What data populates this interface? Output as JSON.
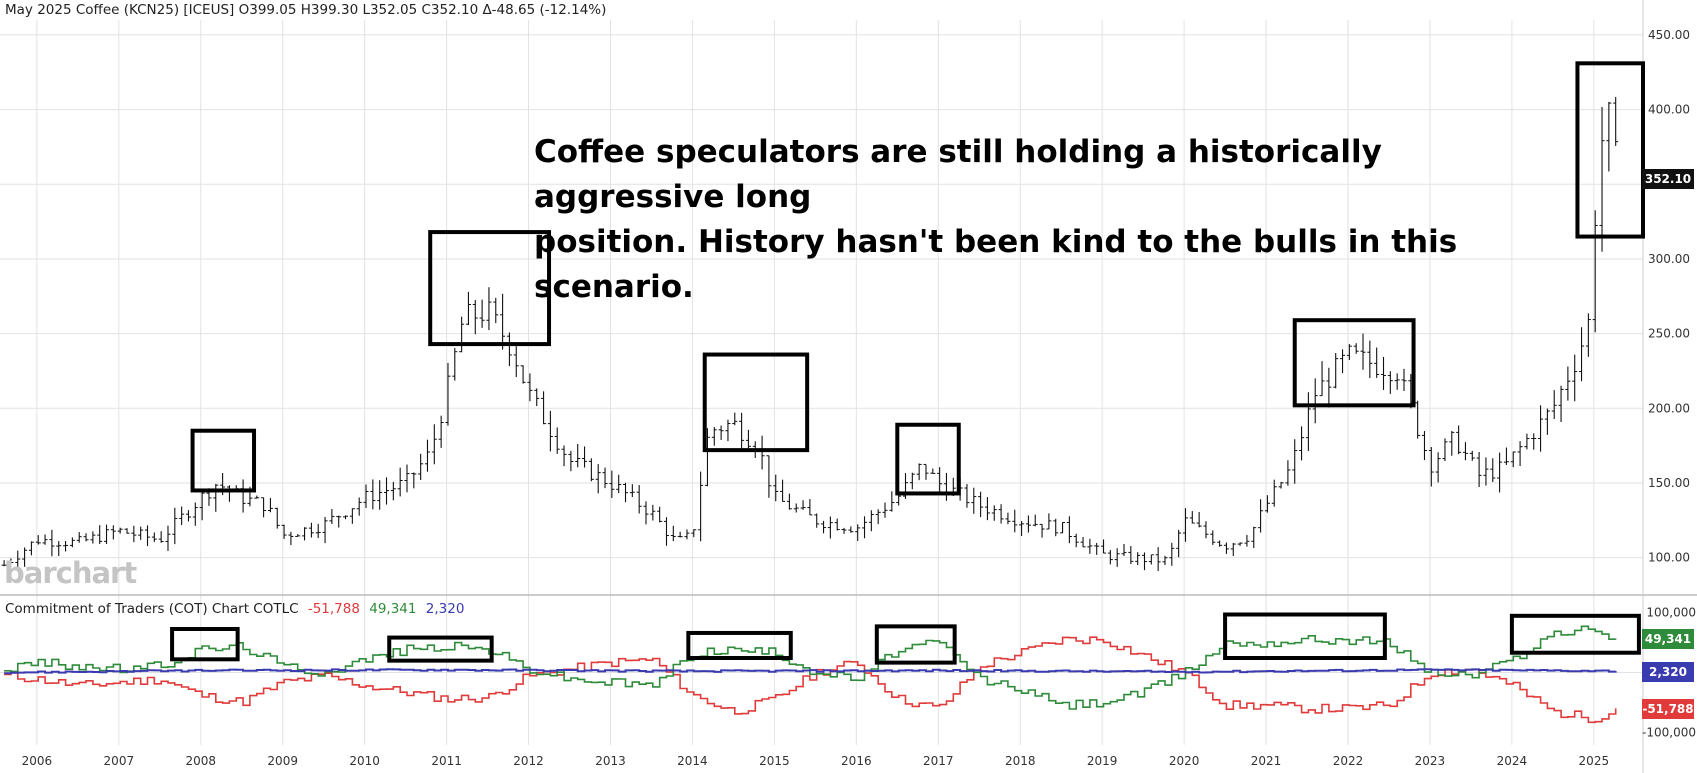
{
  "header": {
    "title": "May 2025 Coffee (KCN25) [ICEUS]",
    "ohlc": "O399.05 H399.30 L352.05 C352.10 Δ-48.65 (-12.14%)"
  },
  "annotation": {
    "line1": "Coffee speculators are still holding a historically aggressive long",
    "line2": "position. History hasn't been kind to the bulls in this scenario."
  },
  "logo": "barchart",
  "cot_header": {
    "title": "Commitment of Traders (COT) Chart  COTLC",
    "commercials": "-51,788",
    "large_spec": "49,341",
    "small_spec": "2,320"
  },
  "colors": {
    "commercials": "#e03a3a",
    "large_spec": "#2e8b3a",
    "small_spec": "#3b3bb0",
    "price": "#111111",
    "grid": "#e2e2e2"
  },
  "last_price_label": "352.10",
  "cot_labels": {
    "large_spec": "49,341",
    "small_spec": "2,320",
    "commercials": "-51,788"
  },
  "chart_data": [
    {
      "type": "line",
      "subtype": "ohlc-bar",
      "xaxis_ticks": [
        "2006",
        "2007",
        "2008",
        "2009",
        "2010",
        "2011",
        "2012",
        "2013",
        "2014",
        "2015",
        "2016",
        "2017",
        "2018",
        "2019",
        "2020",
        "2021",
        "2022",
        "2023",
        "2024",
        "2025"
      ],
      "yaxis_ticks": [
        "100.00",
        "150.00",
        "200.00",
        "250.00",
        "300.00",
        "400.00",
        "450.00"
      ],
      "ylim": [
        75,
        460
      ],
      "x": [
        2005.6,
        2006.0,
        2006.5,
        2007.0,
        2007.5,
        2008.0,
        2008.2,
        2008.5,
        2008.8,
        2009.0,
        2009.5,
        2010.0,
        2010.5,
        2010.8,
        2011.0,
        2011.2,
        2011.5,
        2011.8,
        2012.0,
        2012.5,
        2013.0,
        2013.5,
        2013.8,
        2014.0,
        2014.2,
        2014.5,
        2014.8,
        2015.0,
        2015.5,
        2016.0,
        2016.5,
        2016.8,
        2017.0,
        2017.5,
        2018.0,
        2018.5,
        2019.0,
        2019.3,
        2019.8,
        2020.0,
        2020.5,
        2020.8,
        2021.0,
        2021.3,
        2021.6,
        2022.0,
        2022.3,
        2022.6,
        2022.8,
        2023.0,
        2023.3,
        2023.6,
        2023.9,
        2024.2,
        2024.5,
        2024.8,
        2024.95,
        2025.0,
        2025.1,
        2025.2,
        2025.3
      ],
      "y": [
        95,
        112,
        110,
        118,
        112,
        140,
        150,
        140,
        135,
        115,
        122,
        140,
        150,
        170,
        210,
        260,
        265,
        240,
        210,
        165,
        150,
        130,
        110,
        115,
        185,
        190,
        175,
        140,
        125,
        120,
        140,
        162,
        150,
        135,
        125,
        120,
        102,
        100,
        98,
        125,
        108,
        115,
        135,
        160,
        210,
        235,
        230,
        225,
        195,
        162,
        180,
        155,
        160,
        180,
        200,
        235,
        260,
        320,
        380,
        395,
        352.1
      ]
    },
    {
      "type": "line",
      "subtype": "cot",
      "yaxis_ticks": [
        "100,000",
        "-100,000"
      ],
      "ylim": [
        -110000,
        110000
      ],
      "series": [
        {
          "name": "-51,788",
          "x": [
            2005.6,
            2006.0,
            2006.5,
            2007.0,
            2007.5,
            2008.0,
            2008.5,
            2009.0,
            2009.5,
            2010.0,
            2010.5,
            2011.0,
            2011.5,
            2012.0,
            2012.5,
            2013.0,
            2013.5,
            2014.0,
            2014.5,
            2015.0,
            2015.5,
            2016.0,
            2016.5,
            2017.0,
            2017.5,
            2018.0,
            2018.5,
            2019.0,
            2019.5,
            2020.0,
            2020.5,
            2021.0,
            2021.5,
            2022.0,
            2022.5,
            2023.0,
            2023.5,
            2024.0,
            2024.5,
            2025.0,
            2025.3
          ],
          "y": [
            -5000,
            -10000,
            -20000,
            -15000,
            -10000,
            -35000,
            -45000,
            -15000,
            -5000,
            -20000,
            -30000,
            -40000,
            -38000,
            -5000,
            5000,
            15000,
            20000,
            -35000,
            -60000,
            -40000,
            0,
            15000,
            -40000,
            -55000,
            10000,
            30000,
            50000,
            50000,
            25000,
            0,
            -50000,
            -50000,
            -55000,
            -55000,
            -50000,
            0,
            5000,
            -20000,
            -60000,
            -70000,
            -51788
          ]
        },
        {
          "name": "49,341",
          "x": [
            2005.6,
            2006.0,
            2006.5,
            2007.0,
            2007.5,
            2008.0,
            2008.5,
            2009.0,
            2009.5,
            2010.0,
            2010.5,
            2011.0,
            2011.5,
            2012.0,
            2012.5,
            2013.0,
            2013.5,
            2014.0,
            2014.5,
            2015.0,
            2015.5,
            2016.0,
            2016.5,
            2017.0,
            2017.5,
            2018.0,
            2018.5,
            2019.0,
            2019.5,
            2020.0,
            2020.5,
            2021.0,
            2021.5,
            2022.0,
            2022.5,
            2023.0,
            2023.5,
            2024.0,
            2024.5,
            2025.0,
            2025.3
          ],
          "y": [
            5000,
            15000,
            10000,
            5000,
            10000,
            35000,
            40000,
            10000,
            0,
            20000,
            35000,
            40000,
            35000,
            5000,
            -10000,
            -15000,
            -20000,
            30000,
            35000,
            30000,
            0,
            -10000,
            35000,
            45000,
            -10000,
            -25000,
            -50000,
            -45000,
            -30000,
            0,
            45000,
            45000,
            50000,
            50000,
            45000,
            0,
            -5000,
            20000,
            60000,
            65000,
            49341
          ]
        },
        {
          "name": "2,320",
          "x": [
            2005.6,
            2008.0,
            2011.0,
            2014.0,
            2017.0,
            2020.0,
            2023.0,
            2025.3
          ],
          "y": [
            0,
            3000,
            4000,
            2000,
            3000,
            1000,
            4000,
            2320
          ]
        }
      ]
    }
  ]
}
